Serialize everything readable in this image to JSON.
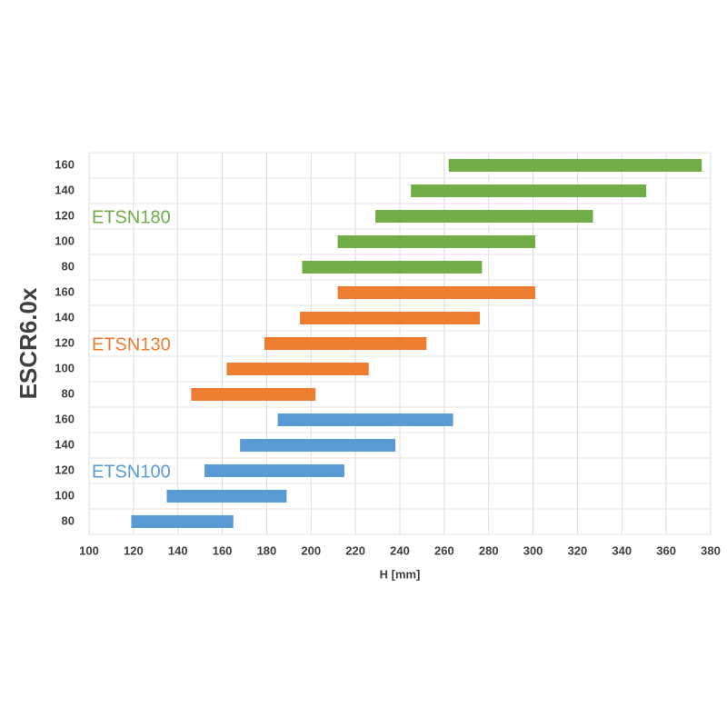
{
  "chart_data": {
    "type": "floating-bar",
    "y_axis_label": "ESCR6.0x",
    "x_axis_label": "H [mm]",
    "xlim": [
      100,
      380
    ],
    "xticks": [
      100,
      120,
      140,
      160,
      180,
      200,
      220,
      240,
      260,
      280,
      300,
      320,
      340,
      360,
      380
    ],
    "grid": true,
    "series": [
      {
        "name": "ETSN100",
        "color": "#5b9bd5",
        "categories": [
          "80",
          "100",
          "120",
          "140",
          "160"
        ],
        "values": [
          [
            119,
            165
          ],
          [
            135,
            189
          ],
          [
            152,
            215
          ],
          [
            168,
            238
          ],
          [
            185,
            264
          ]
        ]
      },
      {
        "name": "ETSN130",
        "color": "#ed7d31",
        "categories": [
          "80",
          "100",
          "120",
          "140",
          "160"
        ],
        "values": [
          [
            146,
            202
          ],
          [
            162,
            226
          ],
          [
            179,
            252
          ],
          [
            195,
            276
          ],
          [
            212,
            301
          ]
        ]
      },
      {
        "name": "ETSN180",
        "color": "#70ad47",
        "categories": [
          "80",
          "100",
          "120",
          "140",
          "160"
        ],
        "values": [
          [
            196,
            277
          ],
          [
            212,
            301
          ],
          [
            229,
            327
          ],
          [
            245,
            351
          ],
          [
            262,
            376
          ]
        ]
      }
    ]
  }
}
